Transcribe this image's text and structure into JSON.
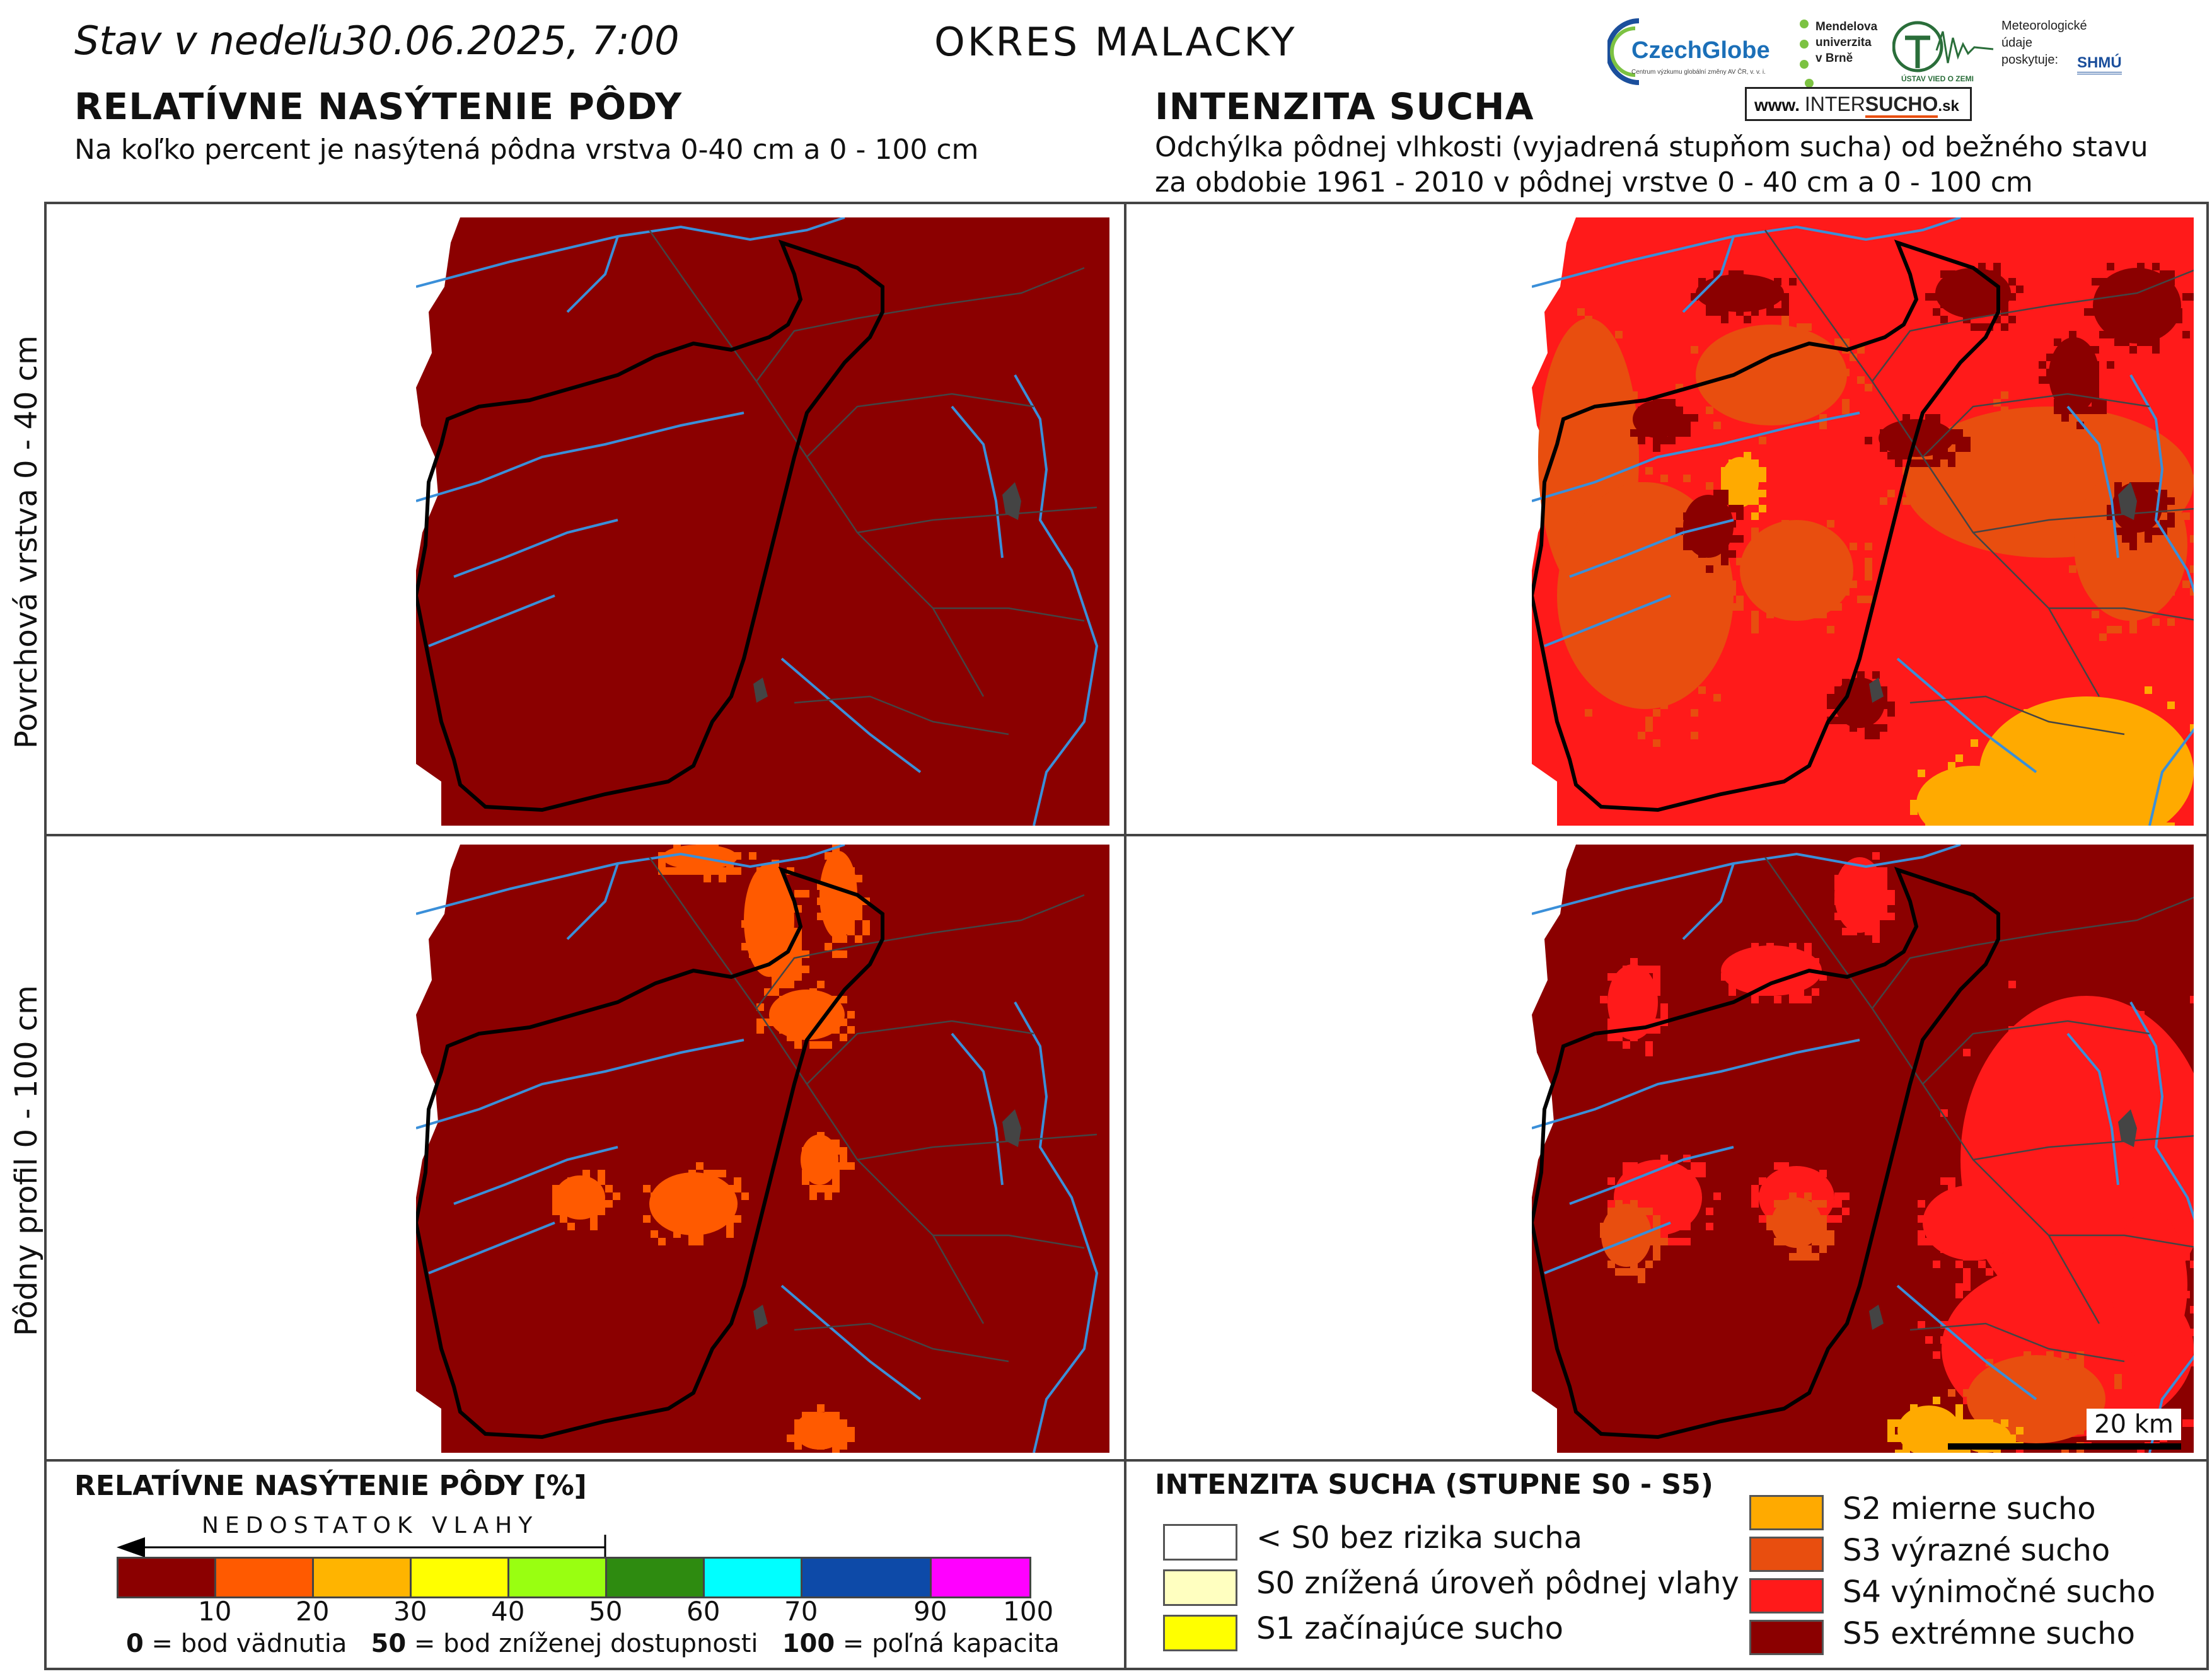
{
  "header": {
    "date_prefix": "Stav v nedeľu",
    "date_value": "30.06.2025, 7:00",
    "district": "OKRES MALACKY"
  },
  "left_section": {
    "title": "RELATÍVNE NASÝTENIE PÔDY",
    "subtitle": "Na koľko percent je nasýtená pôdna vrstva 0-40 cm a 0 - 100 cm"
  },
  "right_section": {
    "title": "INTENZITA SUCHA",
    "subtitle_line1": "Odchýlka pôdnej vlhkosti (vyjadrená stupňom sucha) od bežného stavu",
    "subtitle_line2": "za obdobie 1961 - 2010 v pôdnej vrstve 0 - 40 cm a 0 - 100 cm"
  },
  "logos": {
    "czechglobe": "CzechGlobe",
    "czechglobe_sub": "Centrum výzkumu globální změny AV ČR, v. v. i.",
    "mendel_line1": "Mendelova",
    "mendel_line2": "univerzita",
    "mendel_line3": "v Brně",
    "uvz": "ÚSTAV VIED O ZEMI",
    "meteo_line1": "Meteorologické",
    "meteo_line2": "údaje",
    "meteo_line3": "poskytuje:",
    "shmu": "SHMÚ",
    "intersucho_prefix": "www.",
    "intersucho_inter": "INTER",
    "intersucho_sucho": "SUCHO",
    "intersucho_suffix": ".sk"
  },
  "rows": {
    "top_label": "Povrchová vrstva 0 - 40 cm",
    "bottom_label": "Pôdny profil 0 - 100 cm"
  },
  "scale_bar": "20 km",
  "saturation_legend": {
    "title": "RELATÍVNE NASÝTENIE PÔDY [%]",
    "arrow_label": "NEDOSTATOK VLAHY",
    "bins": [
      {
        "upper": "10",
        "color": "#8b0000"
      },
      {
        "upper": "20",
        "color": "#ff5a00"
      },
      {
        "upper": "30",
        "color": "#ffb400"
      },
      {
        "upper": "40",
        "color": "#ffff00"
      },
      {
        "upper": "50",
        "color": "#99ff11"
      },
      {
        "upper": "60",
        "color": "#2e8b10"
      },
      {
        "upper": "70",
        "color": "#00ffff"
      },
      {
        "upper": "90",
        "color": "#0d4aa8"
      },
      {
        "upper": "100",
        "color": "#ff00ff"
      }
    ],
    "note_0_num": "0",
    "note_0_text": " = bod vädnutia",
    "note_50_num": "50",
    "note_50_text": " = bod zníženej dostupnosti",
    "note_100_num": "100",
    "note_100_text": " = poľná kapacita"
  },
  "drought_legend": {
    "title": "INTENZITA SUCHA (STUPNE S0 - S5)",
    "classes_left": [
      {
        "label": "< S0 bez rizika sucha",
        "color": "#ffffff"
      },
      {
        "label": "S0 znížená úroveň pôdnej vlahy",
        "color": "#ffffc0"
      },
      {
        "label": "S1 začínajúce sucho",
        "color": "#ffff00"
      }
    ],
    "classes_right": [
      {
        "label": "S2 mierne sucho",
        "color": "#ffaa00"
      },
      {
        "label": "S3 výrazné sucho",
        "color": "#e84e0f"
      },
      {
        "label": "S4 výnimočné sucho",
        "color": "#ff1a1a"
      },
      {
        "label": "S5 extrémne sucho",
        "color": "#8b0000"
      }
    ]
  },
  "colors": {
    "s5": "#8b0000",
    "s4": "#ff1a1a",
    "s3": "#e84e0f",
    "s2": "#ffaa00",
    "s1": "#ffff00",
    "sat20": "#ff5a00",
    "river": "#3a8fd9",
    "border": "#000000",
    "admin": "#444444",
    "town": "#444444"
  }
}
